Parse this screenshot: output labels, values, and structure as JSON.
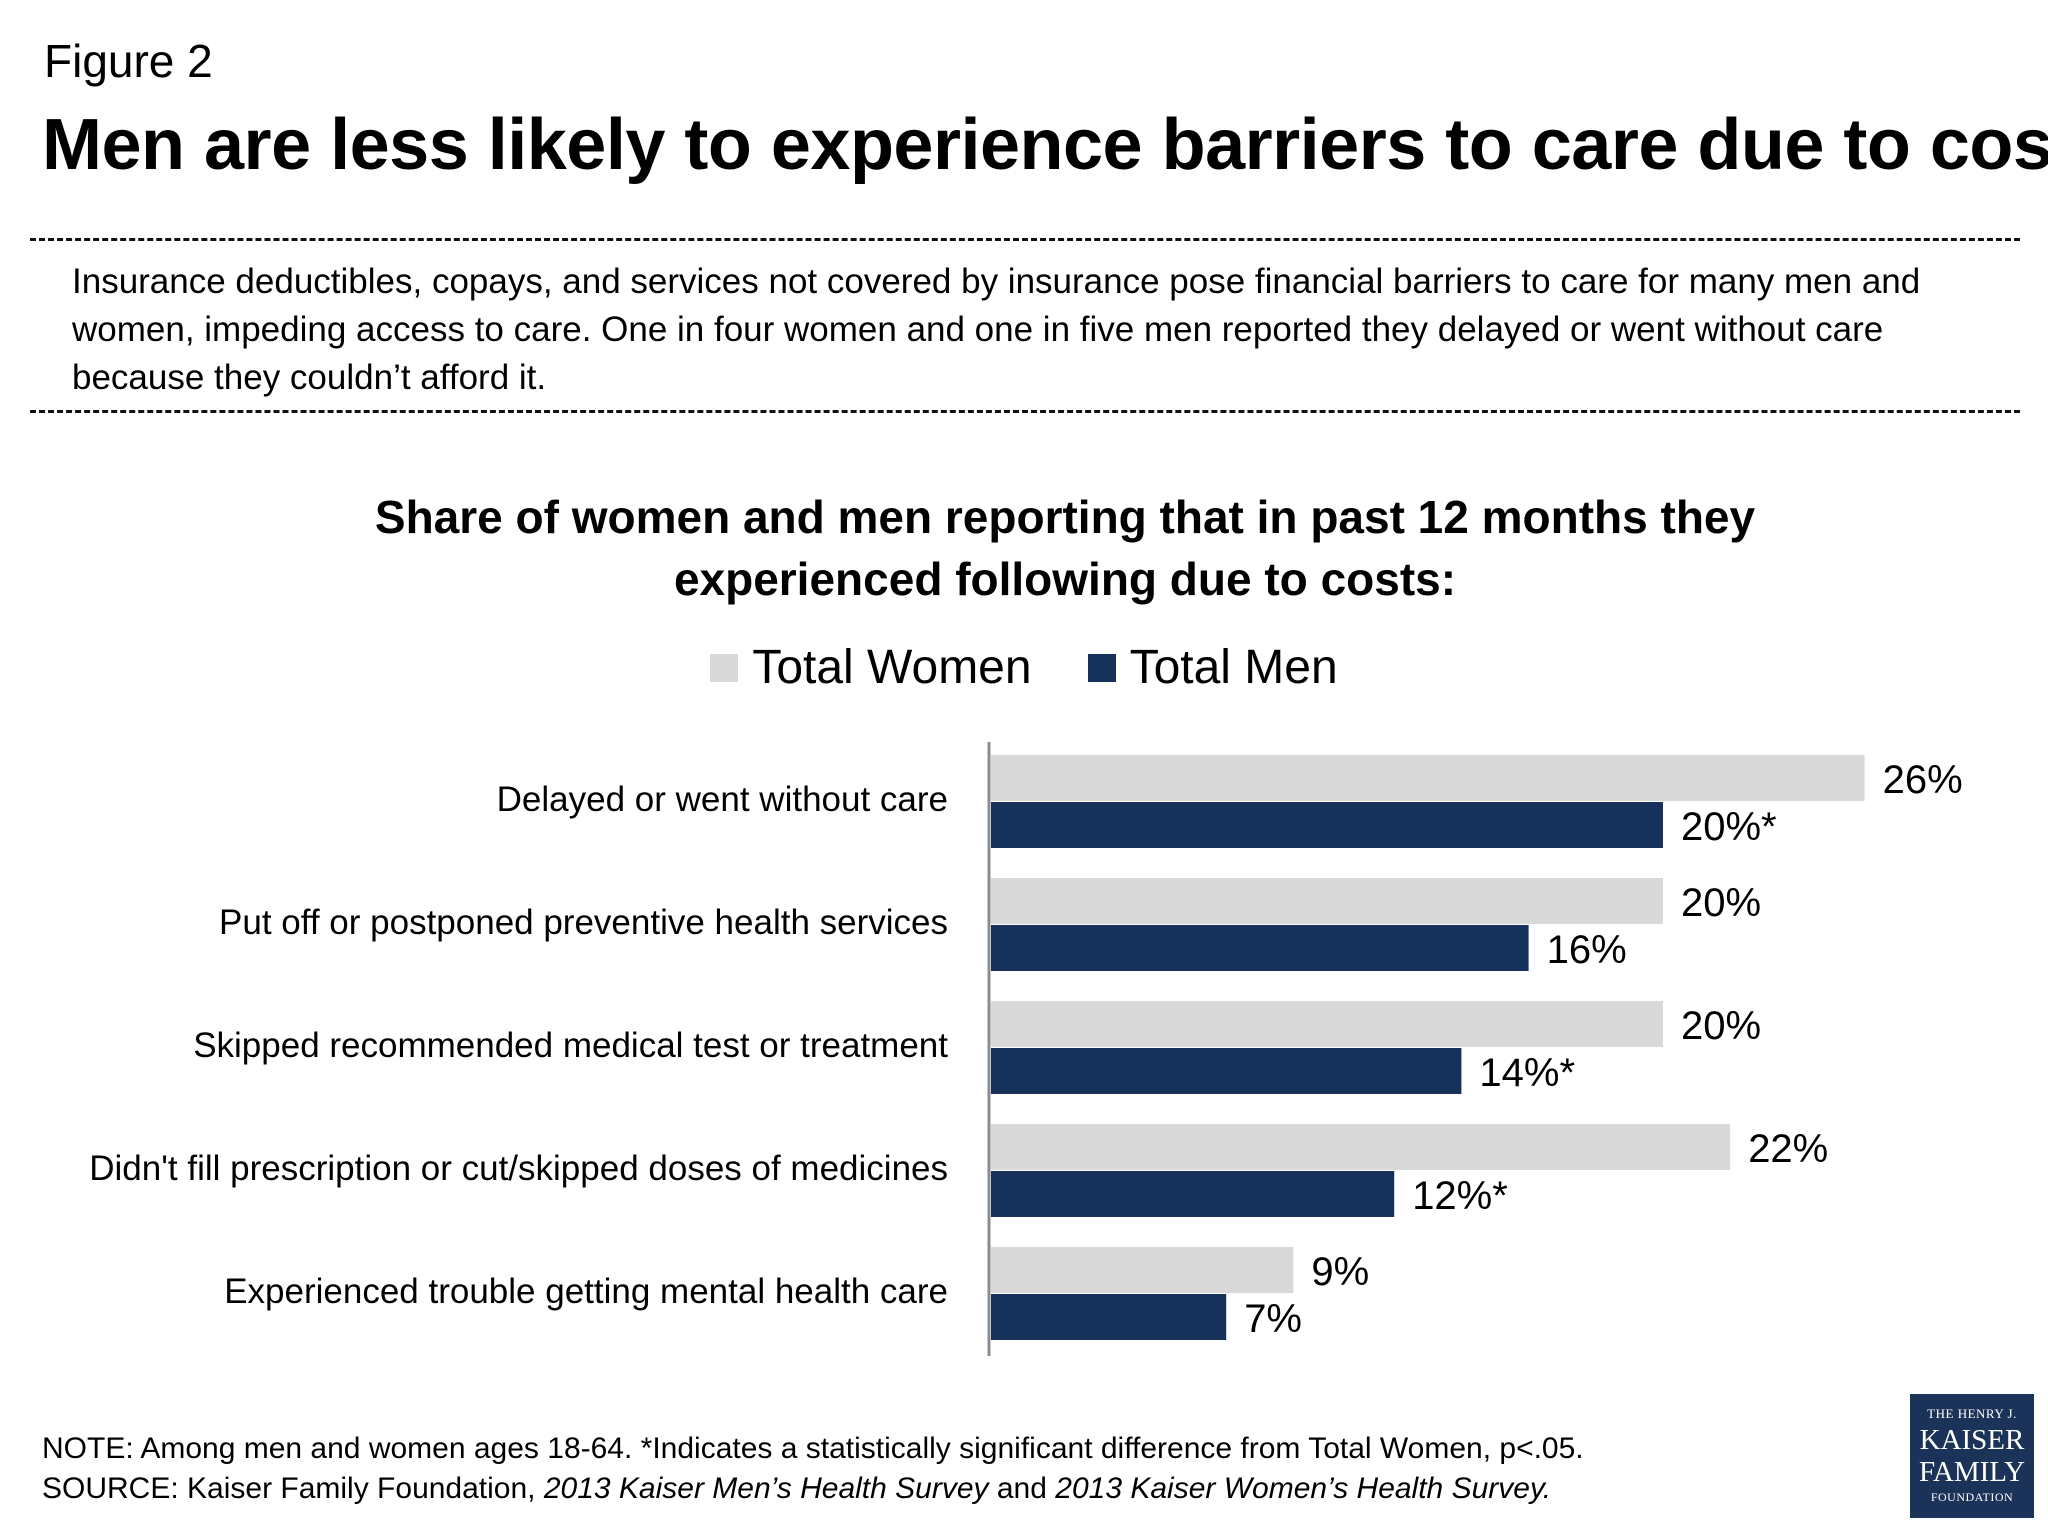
{
  "figure_label": "Figure 2",
  "title": "Men are less likely to experience barriers to care due to cost",
  "intro": "Insurance deductibles, copays, and services not covered by insurance pose financial barriers to care for many men and women, impeding access to care. One in four women and one in five men reported they delayed or went without care because they couldn’t afford it.",
  "chart_title_line1": "Share of women and men reporting that in past 12 months they",
  "chart_title_line2": "experienced following due to costs:",
  "legend": [
    {
      "label": "Total Women",
      "color": "#d9d9d9"
    },
    {
      "label": "Total Men",
      "color": "#17325a"
    }
  ],
  "chart_data": {
    "type": "bar",
    "orientation": "horizontal",
    "title": "Share of women and men reporting that in past 12 months they experienced following due to costs:",
    "categories": [
      "Delayed or went without care",
      "Put off or postponed preventive health services",
      "Skipped recommended medical test or treatment",
      "Didn't fill prescription or cut/skipped doses of medicines",
      "Experienced trouble getting mental health care"
    ],
    "series": [
      {
        "name": "Total Women",
        "color": "#d9d9d9",
        "values": [
          26,
          20,
          20,
          22,
          9
        ],
        "labels": [
          "26%",
          "20%",
          "20%",
          "22%",
          "9%"
        ]
      },
      {
        "name": "Total Men",
        "color": "#17325a",
        "values": [
          20,
          16,
          14,
          12,
          7
        ],
        "labels": [
          "20%*",
          "16%",
          "14%*",
          "12%*",
          "7%"
        ]
      }
    ],
    "xlim": [
      0,
      30
    ],
    "grid": false,
    "legend_position": "top-center"
  },
  "note": "NOTE: Among men and women ages 18-64. *Indicates a statistically significant difference from Total Women,  p<.05.",
  "source_prefix": "SOURCE: Kaiser Family Foundation, ",
  "source_title1": "2013 Kaiser Men’s Health Survey",
  "source_and": " and ",
  "source_title2": "2013 Kaiser Women’s Health Survey.",
  "logo": {
    "line1": "THE HENRY J.",
    "line2": "KAISER",
    "line3": "FAMILY",
    "line4": "FOUNDATION"
  }
}
